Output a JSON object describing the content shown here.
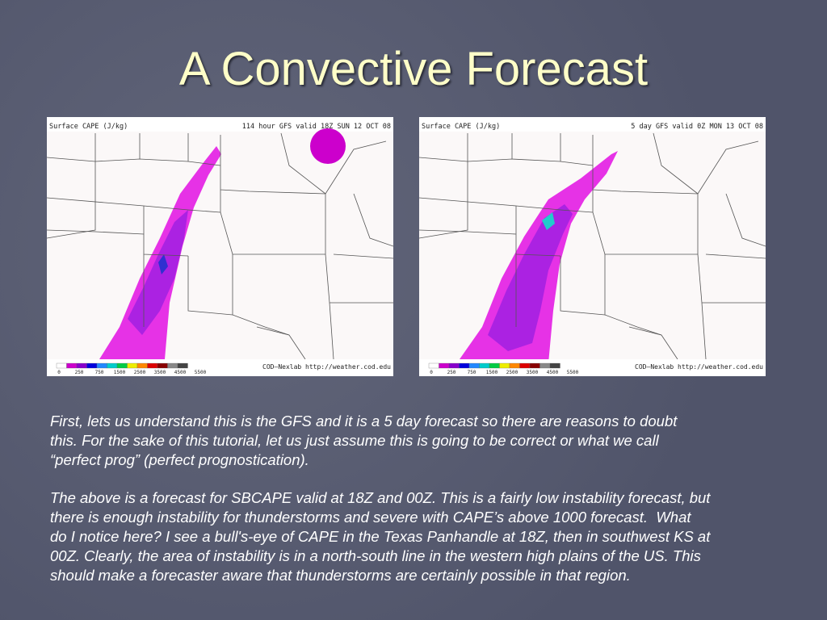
{
  "title": "A Convective Forecast",
  "maps": [
    {
      "header_left": "Surface CAPE (J/kg)",
      "header_right": "114 hour GFS valid 18Z SUN 12 OCT 08",
      "colorbar_labels": [
        0,
        250,
        750,
        1500,
        2500,
        3500,
        4500,
        5500
      ],
      "credit": "COD—Nexlab http://weather.cod.edu"
    },
    {
      "header_left": "Surface CAPE (J/kg)",
      "header_right": "5 day GFS valid 0Z MON 13 OCT 08",
      "colorbar_labels": [
        0,
        250,
        750,
        1500,
        2500,
        3500,
        4500,
        5500
      ],
      "credit": "COD—Nexlab http://weather.cod.edu"
    }
  ],
  "paragraphs": [
    [
      "First, lets us understand this is the GFS and it is a 5 day forecast so there are reasons to doubt",
      "this. For the sake of this tutorial, let us just assume this is going to be correct or what we call",
      "“perfect prog” (perfect prognostication)."
    ],
    [
      "The above is a forecast for SBCAPE valid at 18Z and 00Z. This is a fairly low instability forecast, but",
      "there is enough instability for thunderstorms and severe with CAPE’s above 1000 forecast.  What",
      "do I notice here? I see a bull's-eye of CAPE in the Texas Panhandle at 18Z, then in southwest KS at",
      "00Z. Clearly, the area of instability is in a north-south line in the western high plains of the US. This",
      "should make a forecaster aware that thunderstorms are certainly possible in that region."
    ]
  ]
}
